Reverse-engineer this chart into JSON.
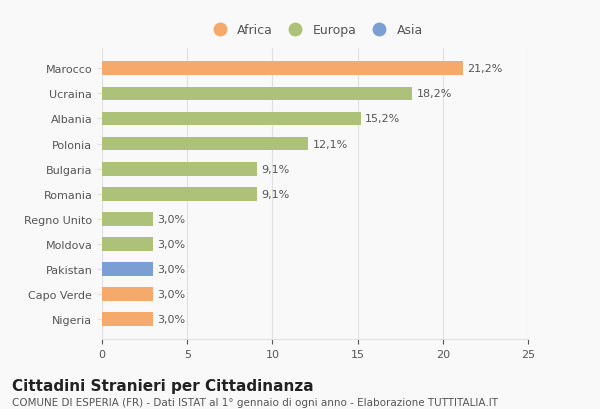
{
  "categories": [
    "Nigeria",
    "Capo Verde",
    "Pakistan",
    "Moldova",
    "Regno Unito",
    "Romania",
    "Bulgaria",
    "Polonia",
    "Albania",
    "Ucraina",
    "Marocco"
  ],
  "values": [
    3.0,
    3.0,
    3.0,
    3.0,
    3.0,
    9.1,
    9.1,
    12.1,
    15.2,
    18.2,
    21.2
  ],
  "labels": [
    "3,0%",
    "3,0%",
    "3,0%",
    "3,0%",
    "3,0%",
    "9,1%",
    "9,1%",
    "12,1%",
    "15,2%",
    "18,2%",
    "21,2%"
  ],
  "colors": [
    "#f5a96a",
    "#f5a96a",
    "#7b9fd4",
    "#adc178",
    "#adc178",
    "#adc178",
    "#adc178",
    "#adc178",
    "#adc178",
    "#adc178",
    "#f5a96a"
  ],
  "africa_color": "#f5a96a",
  "europa_color": "#adc178",
  "asia_color": "#7b9fd4",
  "xlim": [
    0,
    25
  ],
  "xticks": [
    0,
    5,
    10,
    15,
    20,
    25
  ],
  "title": "Cittadini Stranieri per Cittadinanza",
  "subtitle": "COMUNE DI ESPERIA (FR) - Dati ISTAT al 1° gennaio di ogni anno - Elaborazione TUTTITALIA.IT",
  "background_color": "#f9f9f9",
  "bar_height": 0.55,
  "grid_color": "#e0e0e0",
  "text_color": "#555555",
  "label_fontsize": 8,
  "tick_fontsize": 8,
  "title_fontsize": 11,
  "subtitle_fontsize": 7.5,
  "legend_fontsize": 9
}
